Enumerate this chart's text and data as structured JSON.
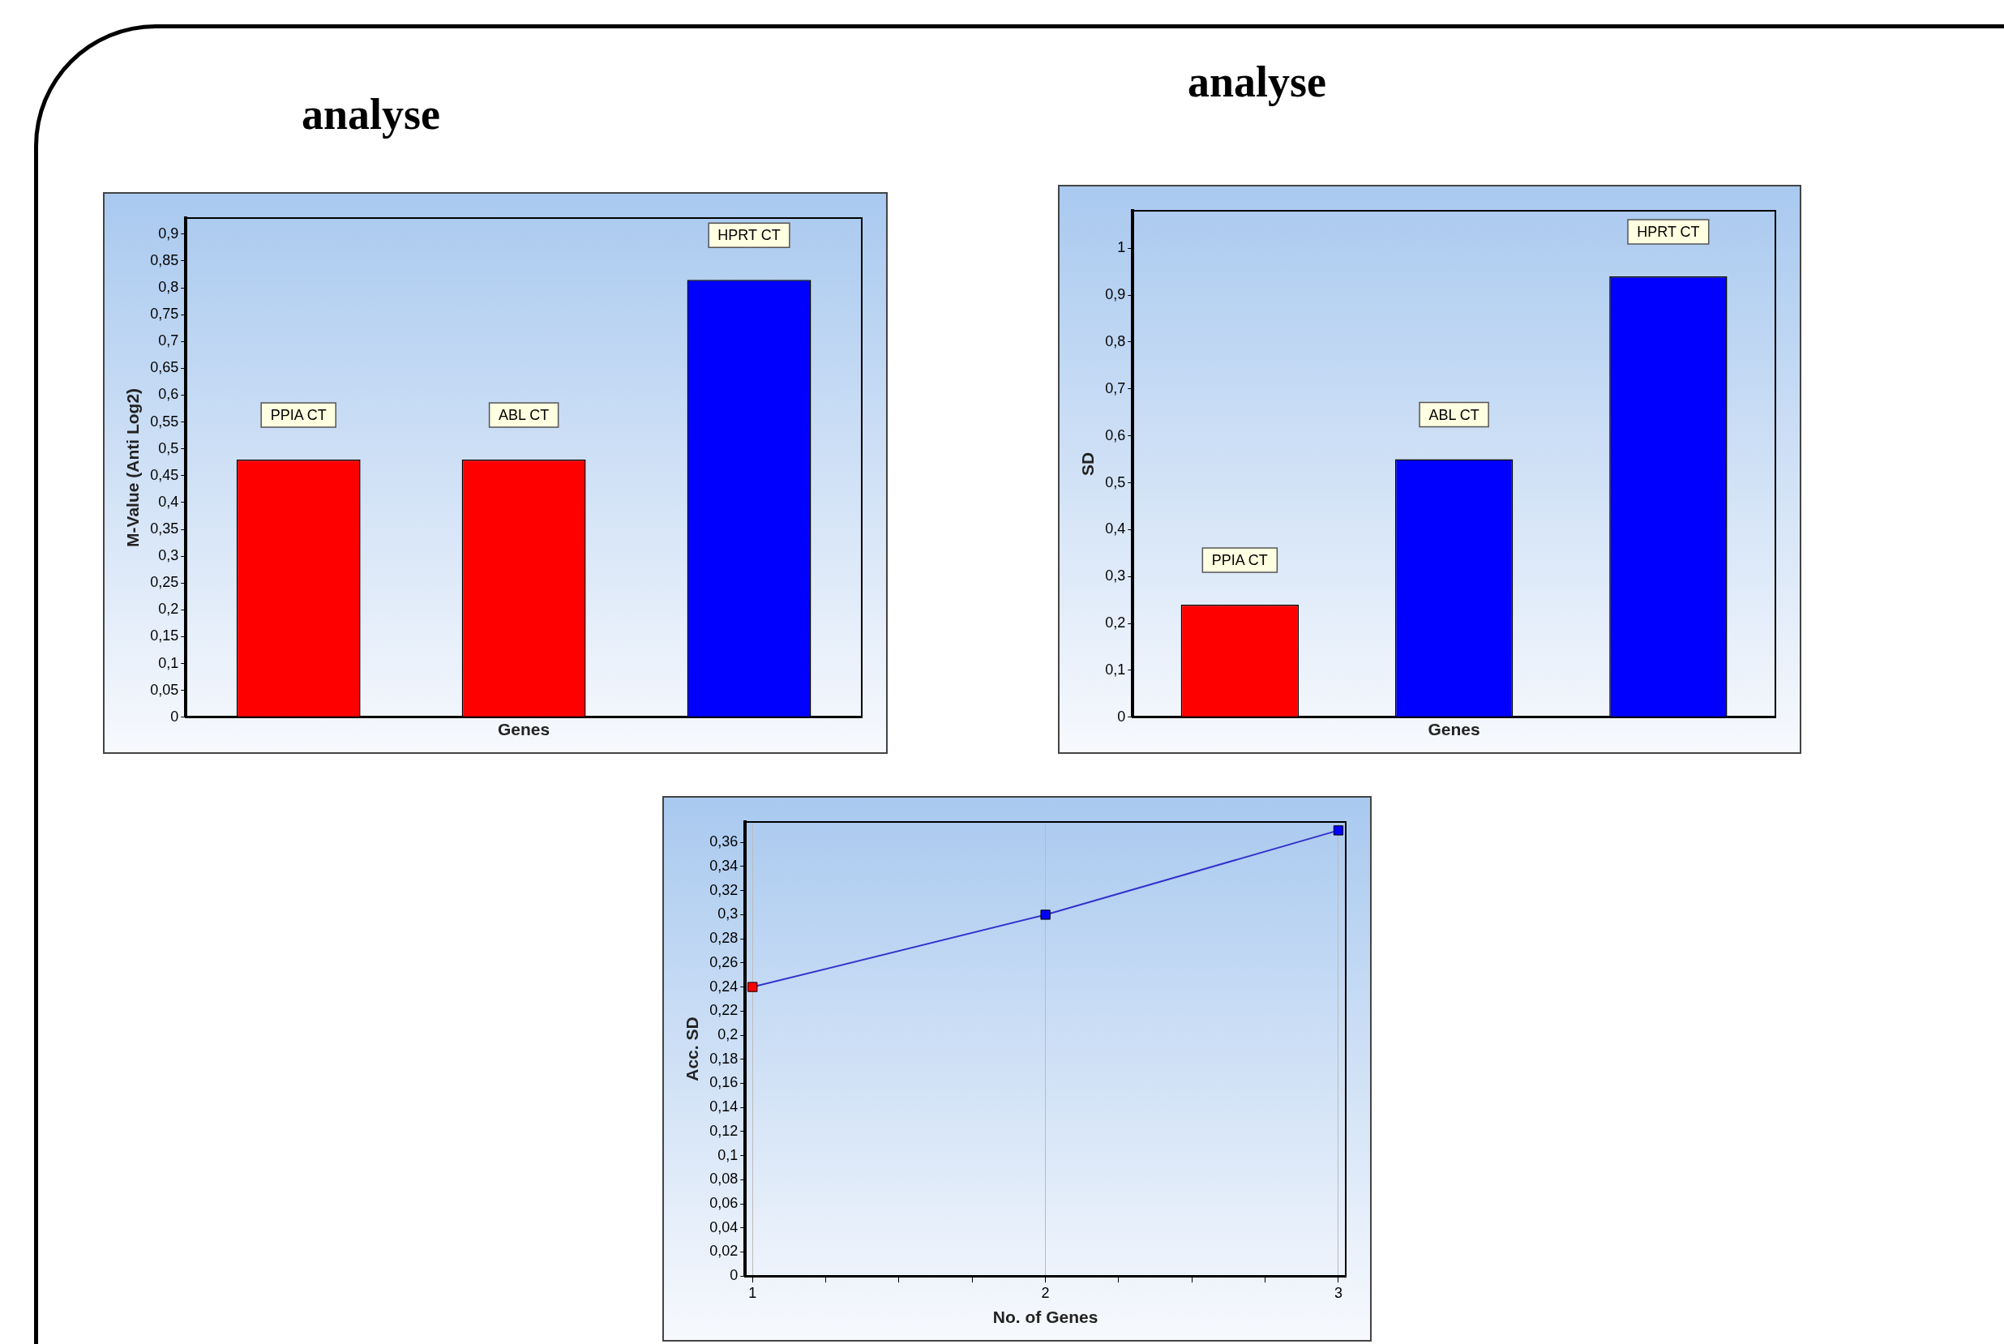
{
  "chart_data": [
    {
      "type": "bar",
      "title": "analyse",
      "categories": [
        "PPIA CT",
        "ABL CT",
        "HPRT CT"
      ],
      "values": [
        0.48,
        0.48,
        0.815
      ],
      "colors": [
        "#ff0000",
        "#ff0000",
        "#0000ff"
      ],
      "xlabel": "Genes",
      "ylabel": "M-Value (Anti Log2)",
      "ylim": [
        0,
        0.93
      ],
      "yticks": [
        {
          "value": 0,
          "label": "0"
        },
        {
          "value": 0.05,
          "label": "0,05"
        },
        {
          "value": 0.1,
          "label": "0,1"
        },
        {
          "value": 0.15,
          "label": "0,15"
        },
        {
          "value": 0.2,
          "label": "0,2"
        },
        {
          "value": 0.25,
          "label": "0,25"
        },
        {
          "value": 0.3,
          "label": "0,3"
        },
        {
          "value": 0.35,
          "label": "0,35"
        },
        {
          "value": 0.4,
          "label": "0,4"
        },
        {
          "value": 0.45,
          "label": "0,45"
        },
        {
          "value": 0.5,
          "label": "0,5"
        },
        {
          "value": 0.55,
          "label": "0,55"
        },
        {
          "value": 0.6,
          "label": "0,6"
        },
        {
          "value": 0.65,
          "label": "0,65"
        },
        {
          "value": 0.7,
          "label": "0,7"
        },
        {
          "value": 0.75,
          "label": "0,75"
        },
        {
          "value": 0.8,
          "label": "0,8"
        },
        {
          "value": 0.85,
          "label": "0,85"
        },
        {
          "value": 0.9,
          "label": "0,9"
        }
      ],
      "tick_labels": "y",
      "grid": false,
      "legend": false
    },
    {
      "type": "bar",
      "title": "analyse",
      "categories": [
        "PPIA CT",
        "ABL CT",
        "HPRT CT"
      ],
      "values": [
        0.24,
        0.55,
        0.94
      ],
      "colors": [
        "#ff0000",
        "#0000ff",
        "#0000ff"
      ],
      "xlabel": "Genes",
      "ylabel": "SD",
      "ylim": [
        0,
        1.08
      ],
      "yticks": [
        {
          "value": 0,
          "label": "0"
        },
        {
          "value": 0.1,
          "label": "0,1"
        },
        {
          "value": 0.2,
          "label": "0,2"
        },
        {
          "value": 0.3,
          "label": "0,3"
        },
        {
          "value": 0.4,
          "label": "0,4"
        },
        {
          "value": 0.5,
          "label": "0,5"
        },
        {
          "value": 0.6,
          "label": "0,6"
        },
        {
          "value": 0.7,
          "label": "0,7"
        },
        {
          "value": 0.8,
          "label": "0,8"
        },
        {
          "value": 0.9,
          "label": "0,9"
        },
        1
      ],
      "tick_labels": "y",
      "grid": false,
      "legend": false
    },
    {
      "type": "line",
      "x": [
        1,
        2,
        3
      ],
      "values": [
        0.24,
        0.3,
        0.37
      ],
      "color": "#3333cc",
      "colors": [
        "#ff0000",
        "#0000ff",
        "#0000ff"
      ],
      "marker": "square",
      "xlabel": "No. of Genes",
      "ylabel": "Acc. SD",
      "xlim": [
        0.975,
        3.025
      ],
      "xticks": [
        1,
        {
          "value": 1.25,
          "label": null
        },
        {
          "value": 1.5,
          "label": null
        },
        {
          "value": 1.75,
          "label": null
        },
        2,
        {
          "value": 2.25,
          "label": null
        },
        {
          "value": 2.5,
          "label": null
        },
        {
          "value": 2.75,
          "label": null
        },
        3
      ],
      "ylim": [
        0,
        0.377
      ],
      "yticks": [
        {
          "value": 0,
          "label": "0"
        },
        {
          "value": 0.02,
          "label": "0,02"
        },
        {
          "value": 0.04,
          "label": "0,04"
        },
        {
          "value": 0.06,
          "label": "0,06"
        },
        {
          "value": 0.08,
          "label": "0,08"
        },
        {
          "value": 0.1,
          "label": "0,1"
        },
        {
          "value": 0.12,
          "label": "0,12"
        },
        {
          "value": 0.14,
          "label": "0,14"
        },
        {
          "value": 0.16,
          "label": "0,16"
        },
        {
          "value": 0.18,
          "label": "0,18"
        },
        {
          "value": 0.2,
          "label": "0,2"
        },
        {
          "value": 0.22,
          "label": "0,22"
        },
        {
          "value": 0.24,
          "label": "0,24"
        },
        {
          "value": 0.26,
          "label": "0,26"
        },
        {
          "value": 0.28,
          "label": "0,28"
        },
        {
          "value": 0.3,
          "label": "0,3"
        },
        {
          "value": 0.32,
          "label": "0,32"
        },
        {
          "value": 0.34,
          "label": "0,34"
        },
        {
          "value": 0.36,
          "label": "0,36"
        }
      ],
      "grid": "x",
      "legend": false
    }
  ]
}
